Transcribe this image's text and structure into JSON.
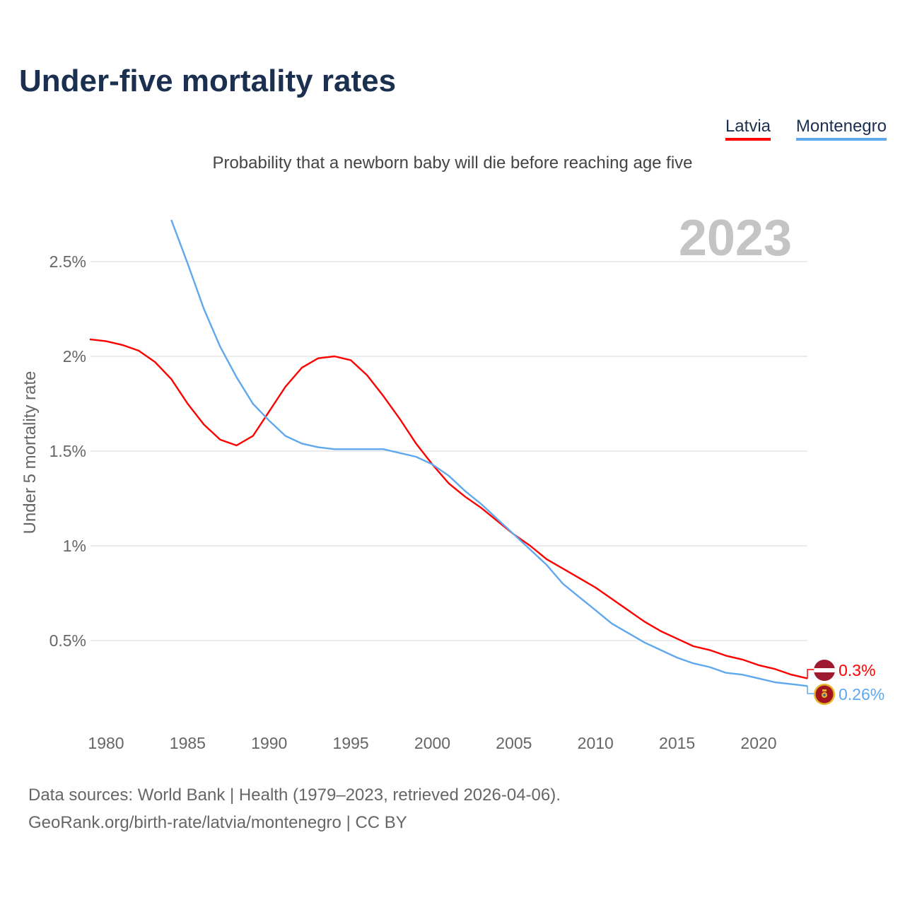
{
  "title": "Under-five mortality rates",
  "subtitle": "Probability that a newborn baby will die before reaching age five",
  "legend": [
    {
      "label": "Latvia",
      "color": "#ff0000"
    },
    {
      "label": "Montenegro",
      "color": "#5fa8ee"
    }
  ],
  "footer": {
    "line1": "Data sources: World Bank | Health (1979–2023, retrieved 2026-04-06).",
    "line2": "GeoRank.org/birth-rate/latvia/montenegro | CC BY"
  },
  "chart_data": {
    "type": "line",
    "title": "Under-five mortality rates",
    "subtitle": "Probability that a newborn baby will die before reaching age five",
    "xlabel": "",
    "ylabel": "Under 5 mortality rate",
    "year_label": "2023",
    "xlim": [
      1979,
      2023
    ],
    "ylim": [
      0,
      2.72
    ],
    "x_ticks": [
      1980,
      1985,
      1990,
      1995,
      2000,
      2005,
      2010,
      2015,
      2020
    ],
    "y_ticks": [
      {
        "value": 0.5,
        "label": "0.5%"
      },
      {
        "value": 1,
        "label": "1%"
      },
      {
        "value": 1.5,
        "label": "1.5%"
      },
      {
        "value": 2,
        "label": "2%"
      },
      {
        "value": 2.5,
        "label": "2.5%"
      }
    ],
    "grid": true,
    "legend_position": "top-right",
    "series": [
      {
        "name": "Latvia",
        "color": "#ff0000",
        "end_label": "0.3%",
        "x": [
          1979,
          1980,
          1981,
          1982,
          1983,
          1984,
          1985,
          1986,
          1987,
          1988,
          1989,
          1990,
          1991,
          1992,
          1993,
          1994,
          1995,
          1996,
          1997,
          1998,
          1999,
          2000,
          2001,
          2002,
          2003,
          2004,
          2005,
          2006,
          2007,
          2008,
          2009,
          2010,
          2011,
          2012,
          2013,
          2014,
          2015,
          2016,
          2017,
          2018,
          2019,
          2020,
          2021,
          2022,
          2023
        ],
        "values": [
          2.09,
          2.08,
          2.06,
          2.03,
          1.97,
          1.88,
          1.75,
          1.64,
          1.56,
          1.53,
          1.58,
          1.71,
          1.84,
          1.94,
          1.99,
          2.0,
          1.98,
          1.9,
          1.79,
          1.67,
          1.54,
          1.43,
          1.33,
          1.26,
          1.2,
          1.13,
          1.06,
          1.0,
          0.93,
          0.88,
          0.83,
          0.78,
          0.72,
          0.66,
          0.6,
          0.55,
          0.51,
          0.47,
          0.45,
          0.42,
          0.4,
          0.37,
          0.35,
          0.32,
          0.3
        ]
      },
      {
        "name": "Montenegro",
        "color": "#5fa8ee",
        "end_label": "0.26%",
        "x": [
          1984,
          1985,
          1986,
          1987,
          1988,
          1989,
          1990,
          1991,
          1992,
          1993,
          1994,
          1995,
          1996,
          1997,
          1998,
          1999,
          2000,
          2001,
          2002,
          2003,
          2004,
          2005,
          2006,
          2007,
          2008,
          2009,
          2010,
          2011,
          2012,
          2013,
          2014,
          2015,
          2016,
          2017,
          2018,
          2019,
          2020,
          2021,
          2022,
          2023
        ],
        "values": [
          2.72,
          2.49,
          2.25,
          2.05,
          1.89,
          1.75,
          1.66,
          1.58,
          1.54,
          1.52,
          1.51,
          1.51,
          1.51,
          1.51,
          1.49,
          1.47,
          1.43,
          1.37,
          1.29,
          1.22,
          1.14,
          1.06,
          0.98,
          0.9,
          0.8,
          0.73,
          0.66,
          0.59,
          0.54,
          0.49,
          0.45,
          0.41,
          0.38,
          0.36,
          0.33,
          0.32,
          0.3,
          0.28,
          0.27,
          0.26
        ]
      }
    ]
  }
}
